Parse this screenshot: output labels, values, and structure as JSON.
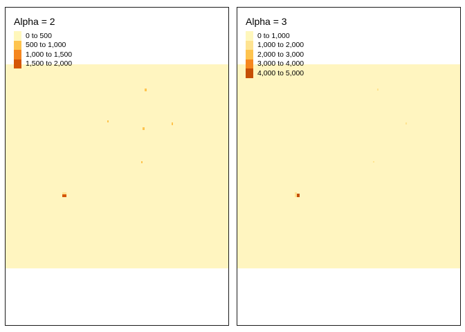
{
  "panels": [
    {
      "title": "Alpha = 2",
      "legend": [
        {
          "label": "0 to 500",
          "color": "#FFF7BC"
        },
        {
          "label": "500 to 1,000",
          "color": "#FEC44F"
        },
        {
          "label": "1,000 to 1,500",
          "color": "#F5861F"
        },
        {
          "label": "1,500 to 2,000",
          "color": "#D55607"
        }
      ]
    },
    {
      "title": "Alpha = 3",
      "legend": [
        {
          "label": "0 to 1,000",
          "color": "#FFF7BC"
        },
        {
          "label": "1,000 to 2,000",
          "color": "#FEE391"
        },
        {
          "label": "2,000 to 3,000",
          "color": "#FEC44F"
        },
        {
          "label": "3,000 to 4,000",
          "color": "#F5861F"
        },
        {
          "label": "4,000 to 5,000",
          "color": "#C64F05"
        }
      ]
    }
  ],
  "background_fill": "#FFF5C0"
}
